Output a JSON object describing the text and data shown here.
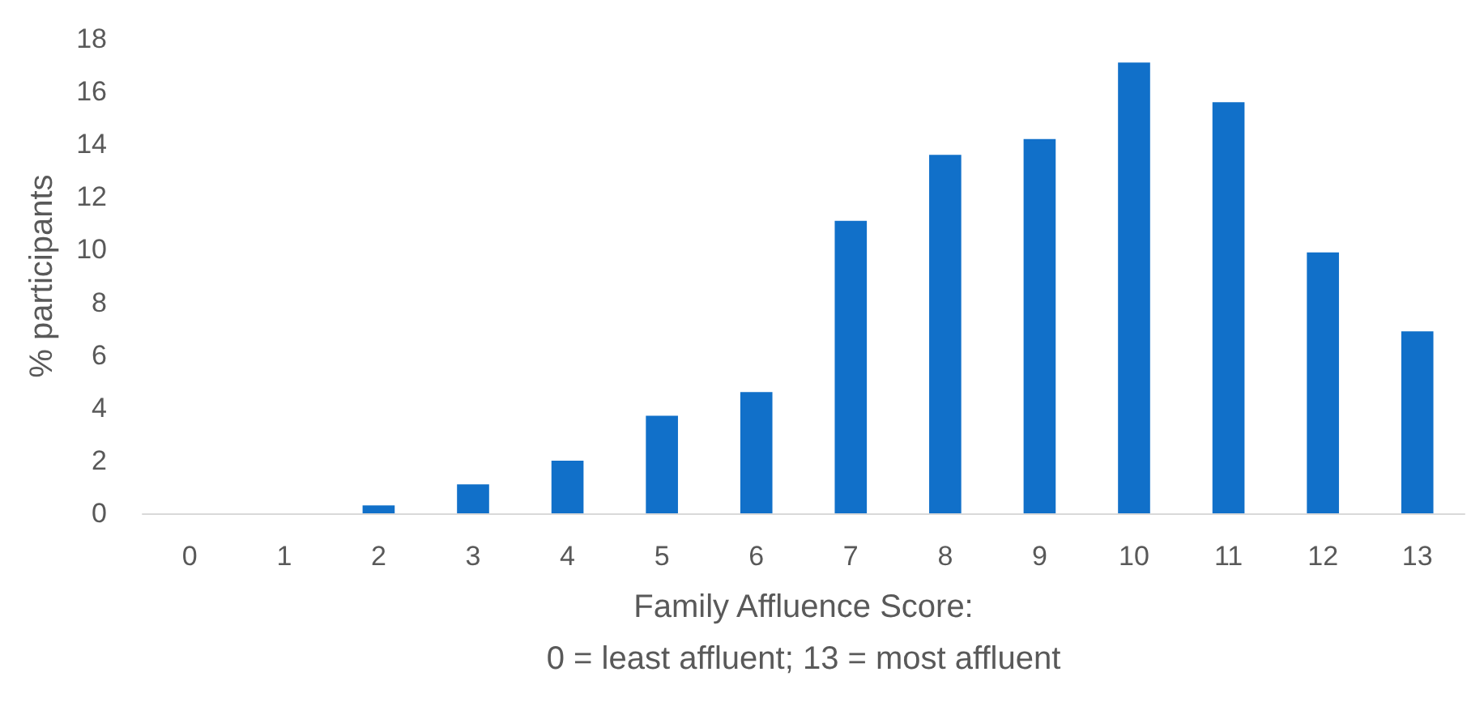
{
  "chart_data": {
    "type": "bar",
    "xlabel": "Family Affluence Score:\n0 = least affluent; 13 = most affluent",
    "ylabel": "% participants",
    "categories": [
      "0",
      "1",
      "2",
      "3",
      "4",
      "5",
      "6",
      "7",
      "8",
      "9",
      "10",
      "11",
      "12",
      "13"
    ],
    "values": [
      0,
      0,
      0.3,
      1.1,
      2.0,
      3.7,
      4.6,
      11.1,
      13.6,
      14.2,
      17.1,
      15.6,
      9.9,
      6.9
    ],
    "color": "#1170c9",
    "ylim": [
      0,
      18
    ],
    "yticks": [
      0,
      2,
      4,
      6,
      8,
      10,
      12,
      14,
      16,
      18
    ],
    "grid": false
  }
}
